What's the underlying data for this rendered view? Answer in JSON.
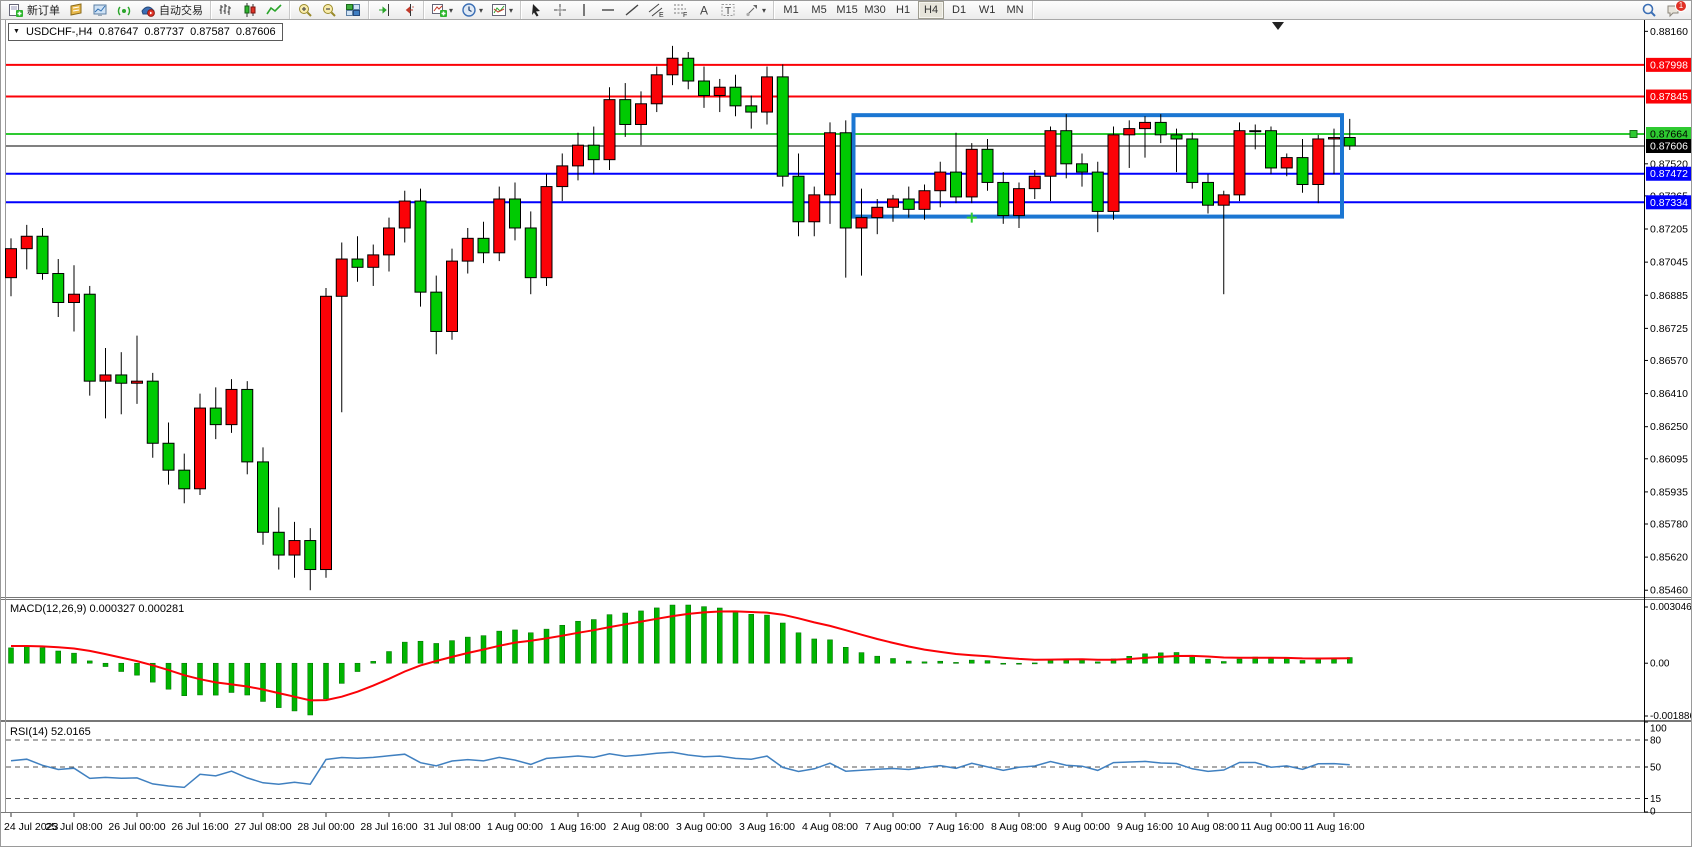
{
  "window_title": "MetaTrader",
  "toolbar": {
    "groups": [
      {
        "name": "trade",
        "items": [
          {
            "name": "new-order-button",
            "icon": "new-order",
            "label": "新订单"
          },
          {
            "name": "quotes-button",
            "icon": "quotes"
          },
          {
            "name": "charts-button",
            "icon": "charts"
          },
          {
            "name": "signals-button",
            "icon": "signals"
          },
          {
            "name": "autotrading-button",
            "icon": "autotrading",
            "label": "自动交易"
          }
        ]
      },
      {
        "name": "chart-type",
        "items": [
          {
            "name": "bar-chart-button",
            "icon": "chart-bars"
          },
          {
            "name": "candlestick-chart-button",
            "icon": "chart-candles"
          },
          {
            "name": "line-chart-button",
            "icon": "chart-line"
          }
        ]
      },
      {
        "name": "zoom",
        "items": [
          {
            "name": "zoom-in-button",
            "icon": "zoom-in"
          },
          {
            "name": "zoom-out-button",
            "icon": "zoom-out"
          },
          {
            "name": "tile-windows-button",
            "icon": "tile-windows"
          }
        ]
      },
      {
        "name": "scroll",
        "items": [
          {
            "name": "auto-scroll-button",
            "icon": "auto-scroll"
          },
          {
            "name": "chart-shift-button",
            "icon": "chart-shift"
          }
        ]
      },
      {
        "name": "insert",
        "items": [
          {
            "name": "indicators-button",
            "icon": "indicators",
            "dropdown": true
          },
          {
            "name": "periods-button",
            "icon": "periods",
            "dropdown": true
          },
          {
            "name": "templates-button",
            "icon": "templates",
            "dropdown": true
          }
        ]
      },
      {
        "name": "tools",
        "items": [
          {
            "name": "cursor-button",
            "icon": "cursor"
          },
          {
            "name": "crosshair-button",
            "icon": "crosshair"
          },
          {
            "name": "vertical-line-button",
            "icon": "vertical-line"
          },
          {
            "name": "horizontal-line-button",
            "icon": "horizontal-line"
          },
          {
            "name": "trendline-button",
            "icon": "trendline"
          },
          {
            "name": "equidistant-channel-button",
            "icon": "channel",
            "glyph": "E"
          },
          {
            "name": "fibonacci-button",
            "icon": "fibo",
            "glyph": "F"
          },
          {
            "name": "text-button",
            "icon": "text",
            "glyph": "A"
          },
          {
            "name": "text-label-button",
            "icon": "label",
            "glyph": "T"
          },
          {
            "name": "shapes-button",
            "icon": "shapes",
            "dropdown": true
          }
        ]
      }
    ],
    "timeframes": [
      "M1",
      "M5",
      "M15",
      "M30",
      "H1",
      "H4",
      "D1",
      "W1",
      "MN"
    ],
    "active_timeframe": "H4",
    "right": [
      {
        "name": "search-button",
        "icon": "search"
      },
      {
        "name": "alerts-button",
        "icon": "alerts",
        "badge": "1"
      }
    ]
  },
  "chart": {
    "title": {
      "collapse_glyph": "▼",
      "symbol_period": "USDCHF-,H4",
      "open": "0.87647",
      "high": "0.87737",
      "low": "0.87587",
      "close": "0.87606"
    }
  },
  "chart_data": {
    "type": "candlestick",
    "symbol": "USDCHF-",
    "timeframe": "H4",
    "up_color": "#fb0207",
    "down_color": "#00ca02",
    "candles": [
      [
        0.8697,
        0.8716,
        0.8688,
        0.8711
      ],
      [
        0.8711,
        0.87225,
        0.8701,
        0.8717
      ],
      [
        0.8717,
        0.8721,
        0.8696,
        0.8699
      ],
      [
        0.8699,
        0.8706,
        0.8678,
        0.8685
      ],
      [
        0.8685,
        0.8703,
        0.8671,
        0.8689
      ],
      [
        0.8689,
        0.8693,
        0.864,
        0.8647
      ],
      [
        0.8647,
        0.8663,
        0.8629,
        0.865
      ],
      [
        0.865,
        0.8661,
        0.8631,
        0.8646
      ],
      [
        0.8646,
        0.8669,
        0.8636,
        0.8647
      ],
      [
        0.8647,
        0.8651,
        0.861,
        0.8617
      ],
      [
        0.8617,
        0.8627,
        0.8597,
        0.8604
      ],
      [
        0.8604,
        0.8612,
        0.8588,
        0.8595
      ],
      [
        0.8595,
        0.8641,
        0.8592,
        0.8634
      ],
      [
        0.8634,
        0.8644,
        0.8619,
        0.8626
      ],
      [
        0.8626,
        0.8648,
        0.8622,
        0.8643
      ],
      [
        0.8643,
        0.8647,
        0.8602,
        0.8608
      ],
      [
        0.8608,
        0.8615,
        0.8568,
        0.8574
      ],
      [
        0.8574,
        0.8586,
        0.8556,
        0.8563
      ],
      [
        0.8563,
        0.8579,
        0.8552,
        0.857
      ],
      [
        0.857,
        0.8576,
        0.8546,
        0.8556
      ],
      [
        0.8556,
        0.8692,
        0.8552,
        0.8688
      ],
      [
        0.8688,
        0.8714,
        0.8632,
        0.8706
      ],
      [
        0.8706,
        0.8717,
        0.8695,
        0.8702
      ],
      [
        0.8702,
        0.8713,
        0.8693,
        0.8708
      ],
      [
        0.8708,
        0.8726,
        0.87,
        0.8721
      ],
      [
        0.8721,
        0.8739,
        0.8714,
        0.8734
      ],
      [
        0.8734,
        0.874,
        0.8683,
        0.869
      ],
      [
        0.869,
        0.8698,
        0.866,
        0.8671
      ],
      [
        0.8671,
        0.8711,
        0.8667,
        0.8705
      ],
      [
        0.8705,
        0.8721,
        0.8699,
        0.8716
      ],
      [
        0.8716,
        0.8724,
        0.8704,
        0.8709
      ],
      [
        0.8709,
        0.8741,
        0.8705,
        0.8735
      ],
      [
        0.8735,
        0.8743,
        0.8715,
        0.8721
      ],
      [
        0.8721,
        0.8729,
        0.8689,
        0.8697
      ],
      [
        0.8697,
        0.8747,
        0.8693,
        0.8741
      ],
      [
        0.8741,
        0.8757,
        0.8734,
        0.8751
      ],
      [
        0.8751,
        0.8767,
        0.8744,
        0.8761
      ],
      [
        0.8761,
        0.877,
        0.8747,
        0.8754
      ],
      [
        0.8754,
        0.8789,
        0.8749,
        0.8783
      ],
      [
        0.8783,
        0.8791,
        0.8765,
        0.8771
      ],
      [
        0.8771,
        0.8787,
        0.8761,
        0.8781
      ],
      [
        0.8781,
        0.8799,
        0.8777,
        0.8795
      ],
      [
        0.8795,
        0.8809,
        0.879,
        0.8803
      ],
      [
        0.8803,
        0.8806,
        0.8788,
        0.8792
      ],
      [
        0.8792,
        0.8799,
        0.8779,
        0.8785
      ],
      [
        0.8785,
        0.8793,
        0.8777,
        0.8789
      ],
      [
        0.8789,
        0.8795,
        0.8775,
        0.878
      ],
      [
        0.878,
        0.8785,
        0.8769,
        0.8777
      ],
      [
        0.8777,
        0.8799,
        0.8771,
        0.8794
      ],
      [
        0.8794,
        0.88,
        0.8741,
        0.8746
      ],
      [
        0.8746,
        0.8757,
        0.8717,
        0.8724
      ],
      [
        0.8724,
        0.8741,
        0.8717,
        0.8737
      ],
      [
        0.8737,
        0.8772,
        0.8723,
        0.8767
      ],
      [
        0.8767,
        0.8773,
        0.8697,
        0.8721
      ],
      [
        0.8721,
        0.874,
        0.8698,
        0.8726
      ],
      [
        0.8726,
        0.8735,
        0.8718,
        0.8731
      ],
      [
        0.8731,
        0.8737,
        0.8724,
        0.8735
      ],
      [
        0.8735,
        0.8741,
        0.8726,
        0.873
      ],
      [
        0.873,
        0.8742,
        0.8725,
        0.8739
      ],
      [
        0.8739,
        0.8753,
        0.8731,
        0.8748
      ],
      [
        0.8748,
        0.8767,
        0.8733,
        0.8736
      ],
      [
        0.8736,
        0.8762,
        0.8733,
        0.8759
      ],
      [
        0.8759,
        0.8764,
        0.8739,
        0.8743
      ],
      [
        0.8743,
        0.8748,
        0.8723,
        0.8727
      ],
      [
        0.8727,
        0.8743,
        0.8721,
        0.874
      ],
      [
        0.874,
        0.8749,
        0.8735,
        0.8746
      ],
      [
        0.8746,
        0.877,
        0.8734,
        0.8768
      ],
      [
        0.8768,
        0.8776,
        0.8745,
        0.8752
      ],
      [
        0.8752,
        0.8757,
        0.8741,
        0.8748
      ],
      [
        0.8748,
        0.8753,
        0.8719,
        0.8729
      ],
      [
        0.8729,
        0.877,
        0.8725,
        0.8766
      ],
      [
        0.8766,
        0.8773,
        0.875,
        0.8769
      ],
      [
        0.8769,
        0.8775,
        0.8755,
        0.8772
      ],
      [
        0.8772,
        0.8776,
        0.8762,
        0.8766
      ],
      [
        0.8766,
        0.8769,
        0.8748,
        0.8764
      ],
      [
        0.8764,
        0.8767,
        0.874,
        0.8743
      ],
      [
        0.8743,
        0.8747,
        0.8728,
        0.8732
      ],
      [
        0.8732,
        0.8739,
        0.8689,
        0.8737
      ],
      [
        0.8737,
        0.8772,
        0.8734,
        0.8768
      ],
      [
        0.8768,
        0.8771,
        0.8759,
        0.8768
      ],
      [
        0.8768,
        0.877,
        0.8747,
        0.875
      ],
      [
        0.875,
        0.8757,
        0.8746,
        0.8755
      ],
      [
        0.8755,
        0.8764,
        0.8738,
        0.8742
      ],
      [
        0.8742,
        0.8766,
        0.8733,
        0.8764
      ],
      [
        0.8764,
        0.8769,
        0.8747,
        0.87647
      ],
      [
        0.87647,
        0.87737,
        0.87587,
        0.87606
      ]
    ],
    "time_labels": [
      "24 Jul 2023",
      "25 Jul 08:00",
      "26 Jul 00:00",
      "26 Jul 16:00",
      "27 Jul 08:00",
      "28 Jul 00:00",
      "28 Jul 16:00",
      "31 Jul 08:00",
      "1 Aug 00:00",
      "1 Aug 16:00",
      "2 Aug 08:00",
      "3 Aug 00:00",
      "3 Aug 16:00",
      "4 Aug 08:00",
      "7 Aug 00:00",
      "7 Aug 16:00",
      "8 Aug 08:00",
      "9 Aug 00:00",
      "9 Aug 16:00",
      "10 Aug 08:00",
      "11 Aug 00:00",
      "11 Aug 16:00"
    ],
    "time_label_every": 4,
    "price_ticks": [
      0.8816,
      0.8752,
      0.87365,
      0.87205,
      0.87045,
      0.86885,
      0.86725,
      0.8657,
      0.8641,
      0.8625,
      0.86095,
      0.85935,
      0.8578,
      0.8562,
      0.8546
    ],
    "horizontal_lines": [
      {
        "name": "resistance-line-1",
        "price": 0.87998,
        "color": "#fb0207",
        "width": 2,
        "label_text_color": "#ffffff"
      },
      {
        "name": "resistance-line-2",
        "price": 0.87845,
        "color": "#fb0207",
        "width": 2,
        "label_text_color": "#ffffff"
      },
      {
        "name": "pivot-line-green",
        "price": 0.87664,
        "color": "#2eca31",
        "width": 2,
        "label_text_color": "#000000",
        "handle": true
      },
      {
        "name": "current-price-line",
        "price": 0.87606,
        "color": "#000000",
        "width": 1,
        "label_text_color": "#ffffff"
      },
      {
        "name": "support-line-1",
        "price": 0.87472,
        "color": "#0000fd",
        "width": 2,
        "label_text_color": "#ffffff"
      },
      {
        "name": "support-line-2",
        "price": 0.87334,
        "color": "#0000fd",
        "width": 2,
        "label_text_color": "#ffffff"
      }
    ],
    "rectangle": {
      "from_index": 54,
      "to_index": 84,
      "price_top": 0.87755,
      "price_bottom": 0.87265,
      "color": "#1b76d2",
      "stroke_width": 4
    },
    "marker": {
      "index": 61,
      "price": 0.8726,
      "shape": "plus",
      "color": "#2eca31"
    },
    "indicators": [
      {
        "name": "MACD",
        "label": "MACD(12,26,9) 0.000327 0.000281",
        "axis_labels": [
          "0.003046",
          "0.00",
          "-0.001886"
        ],
        "histogram_color": "#00b400",
        "signal_color": "#fb0207"
      },
      {
        "name": "RSI",
        "label": "RSI(14) 52.0165",
        "axis_labels": [
          "100",
          "80",
          "50",
          "15",
          "0"
        ],
        "levels": [
          80,
          50,
          15
        ],
        "line_color": "#4080c0"
      }
    ]
  }
}
